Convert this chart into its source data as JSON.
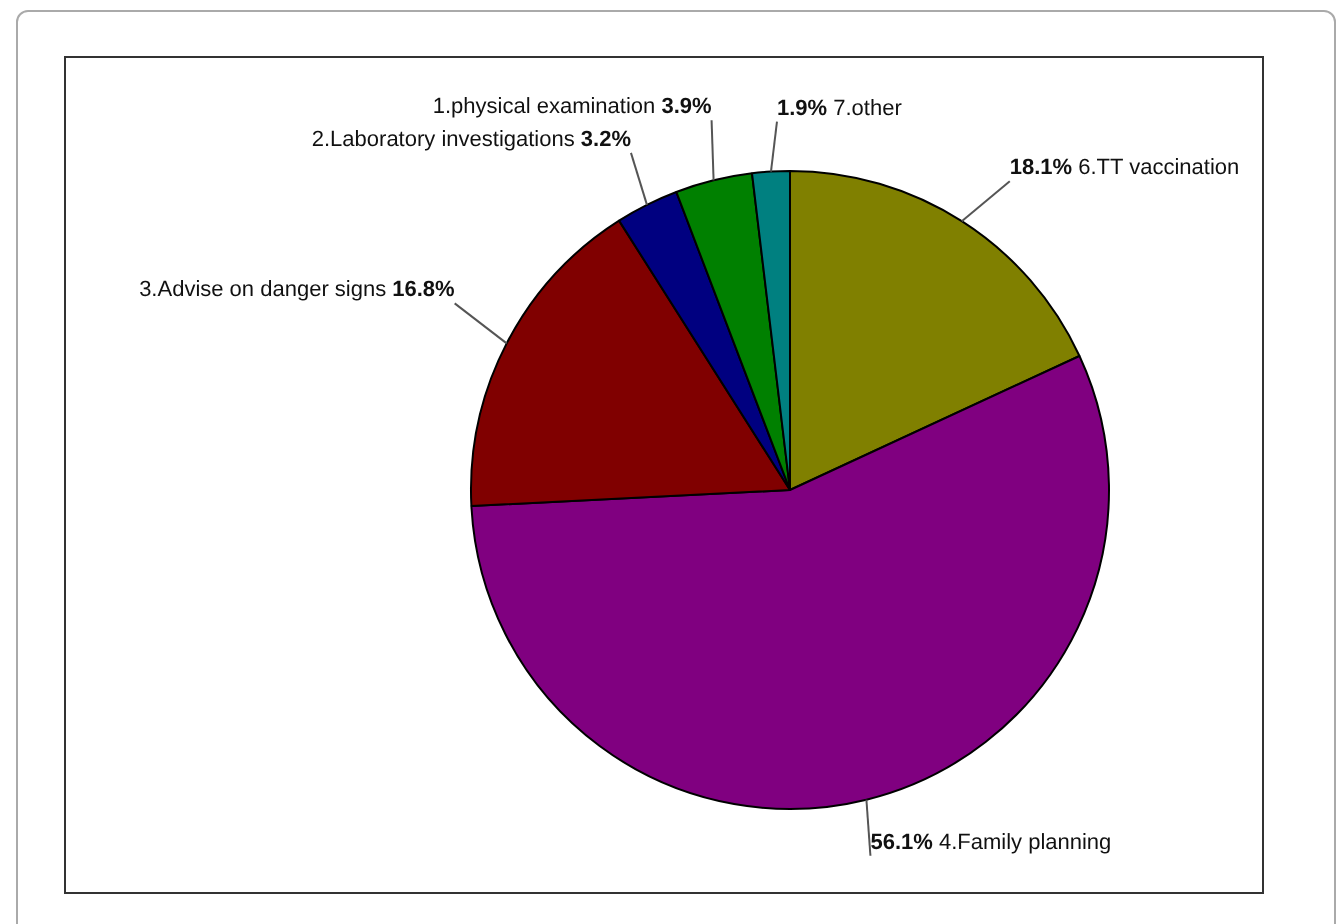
{
  "chart_data": {
    "type": "pie",
    "categories": [
      "6.TT vaccination",
      "4.Family planning",
      "3.Advise on danger signs",
      "2.Laboratory investigations",
      "1.physical examination",
      "7.other"
    ],
    "values": [
      18.1,
      56.1,
      16.8,
      3.2,
      3.9,
      1.9
    ],
    "colors": [
      "#808000",
      "#800080",
      "#800000",
      "#000080",
      "#008000",
      "#008080"
    ],
    "value_labels": [
      "18.1%",
      "56.1%",
      "16.8%",
      "3.2%",
      "3.9%",
      "1.9%"
    ],
    "legend": false
  }
}
